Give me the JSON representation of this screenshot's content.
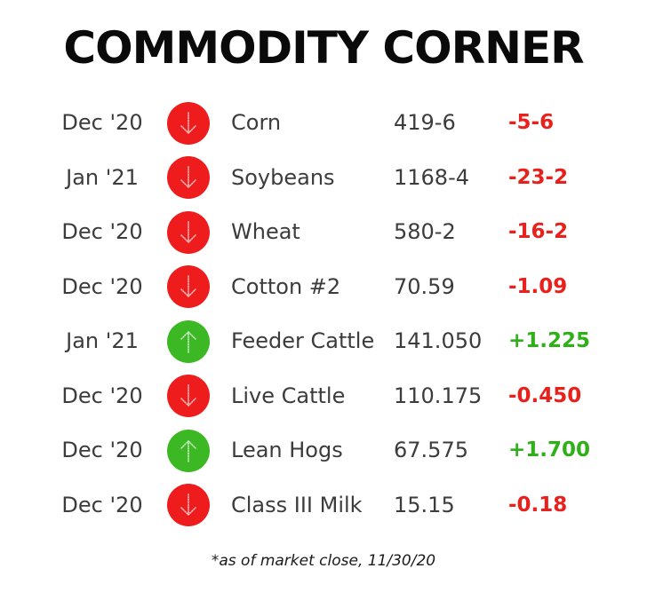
{
  "title": "COMMODITY CORNER",
  "colors": {
    "down": "#ee1c1c",
    "up": "#3cb824",
    "down_text": "#e8211d",
    "up_text": "#2fb019"
  },
  "rows": [
    {
      "month": "Dec '20",
      "direction": "down",
      "icon": "arrow-down-icon",
      "name": "Corn",
      "price": "419-6",
      "change": "-5-6"
    },
    {
      "month": "Jan '21",
      "direction": "down",
      "icon": "arrow-down-icon",
      "name": "Soybeans",
      "price": "1168-4",
      "change": "-23-2"
    },
    {
      "month": "Dec '20",
      "direction": "down",
      "icon": "arrow-down-icon",
      "name": "Wheat",
      "price": "580-2",
      "change": "-16-2"
    },
    {
      "month": "Dec '20",
      "direction": "down",
      "icon": "arrow-down-icon",
      "name": "Cotton #2",
      "price": "70.59",
      "change": "-1.09"
    },
    {
      "month": "Jan '21",
      "direction": "up",
      "icon": "arrow-up-icon",
      "name": "Feeder Cattle",
      "price": "141.050",
      "change": "+1.225"
    },
    {
      "month": "Dec '20",
      "direction": "down",
      "icon": "arrow-down-icon",
      "name": "Live Cattle",
      "price": "110.175",
      "change": "-0.450"
    },
    {
      "month": "Dec '20",
      "direction": "up",
      "icon": "arrow-up-icon",
      "name": "Lean Hogs",
      "price": "67.575",
      "change": "+1.700"
    },
    {
      "month": "Dec '20",
      "direction": "down",
      "icon": "arrow-down-icon",
      "name": "Class III Milk",
      "price": "15.15",
      "change": "-0.18"
    }
  ],
  "footnote": "*as of market close, 11/30/20"
}
